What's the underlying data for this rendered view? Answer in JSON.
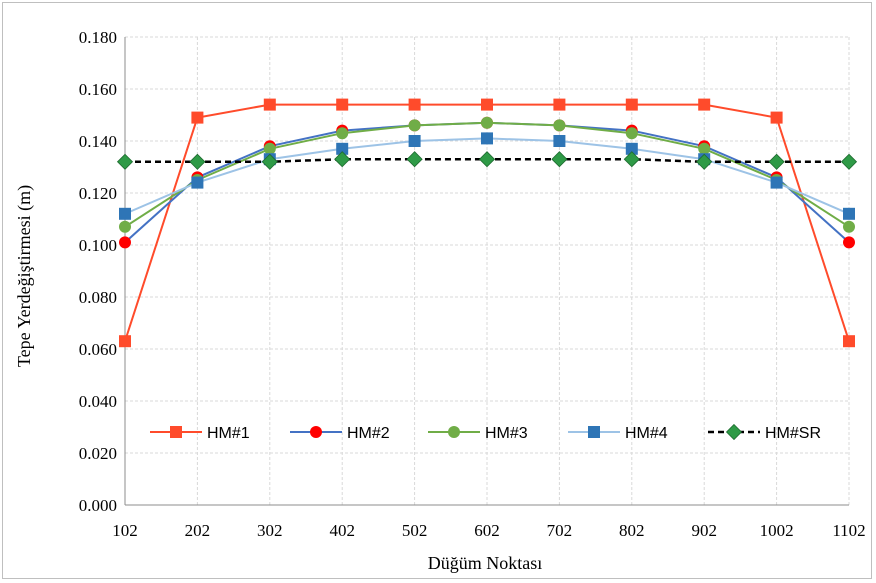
{
  "chart_data": {
    "type": "line",
    "title": "",
    "xlabel": "Düğüm Noktası",
    "ylabel": "Tepe Yerdeğiştirmesi (m)",
    "categories": [
      "102",
      "202",
      "302",
      "402",
      "502",
      "602",
      "702",
      "802",
      "902",
      "1002",
      "1102"
    ],
    "ylim": [
      0,
      0.18
    ],
    "yticks": [
      "0.000",
      "0.020",
      "0.040",
      "0.060",
      "0.080",
      "0.100",
      "0.120",
      "0.140",
      "0.160",
      "0.180"
    ],
    "grid": true,
    "legend_position": "bottom-inside",
    "series": [
      {
        "name": "HM#1",
        "color": "#ff4b2b",
        "marker": "square",
        "dashed": false,
        "values": [
          0.063,
          0.149,
          0.154,
          0.154,
          0.154,
          0.154,
          0.154,
          0.154,
          0.154,
          0.149,
          0.063
        ]
      },
      {
        "name": "HM#2",
        "color": "#4472c4",
        "markerColor": "#ff0000",
        "marker": "circle",
        "dashed": false,
        "values": [
          0.101,
          0.126,
          0.138,
          0.144,
          0.146,
          0.147,
          0.146,
          0.144,
          0.138,
          0.126,
          0.101
        ]
      },
      {
        "name": "HM#3",
        "color": "#70ad47",
        "marker": "circle",
        "dashed": false,
        "values": [
          0.107,
          0.125,
          0.137,
          0.143,
          0.146,
          0.147,
          0.146,
          0.143,
          0.137,
          0.125,
          0.107
        ]
      },
      {
        "name": "HM#4",
        "color": "#9dc3e6",
        "markerColor": "#2e75b6",
        "marker": "square",
        "dashed": false,
        "values": [
          0.112,
          0.124,
          0.133,
          0.137,
          0.14,
          0.141,
          0.14,
          0.137,
          0.133,
          0.124,
          0.112
        ]
      },
      {
        "name": "HM#SR",
        "color": "#000000",
        "markerColor": "#2e9a46",
        "marker": "diamond",
        "dashed": true,
        "values": [
          0.132,
          0.132,
          0.132,
          0.133,
          0.133,
          0.133,
          0.133,
          0.133,
          0.132,
          0.132,
          0.132
        ]
      }
    ]
  }
}
